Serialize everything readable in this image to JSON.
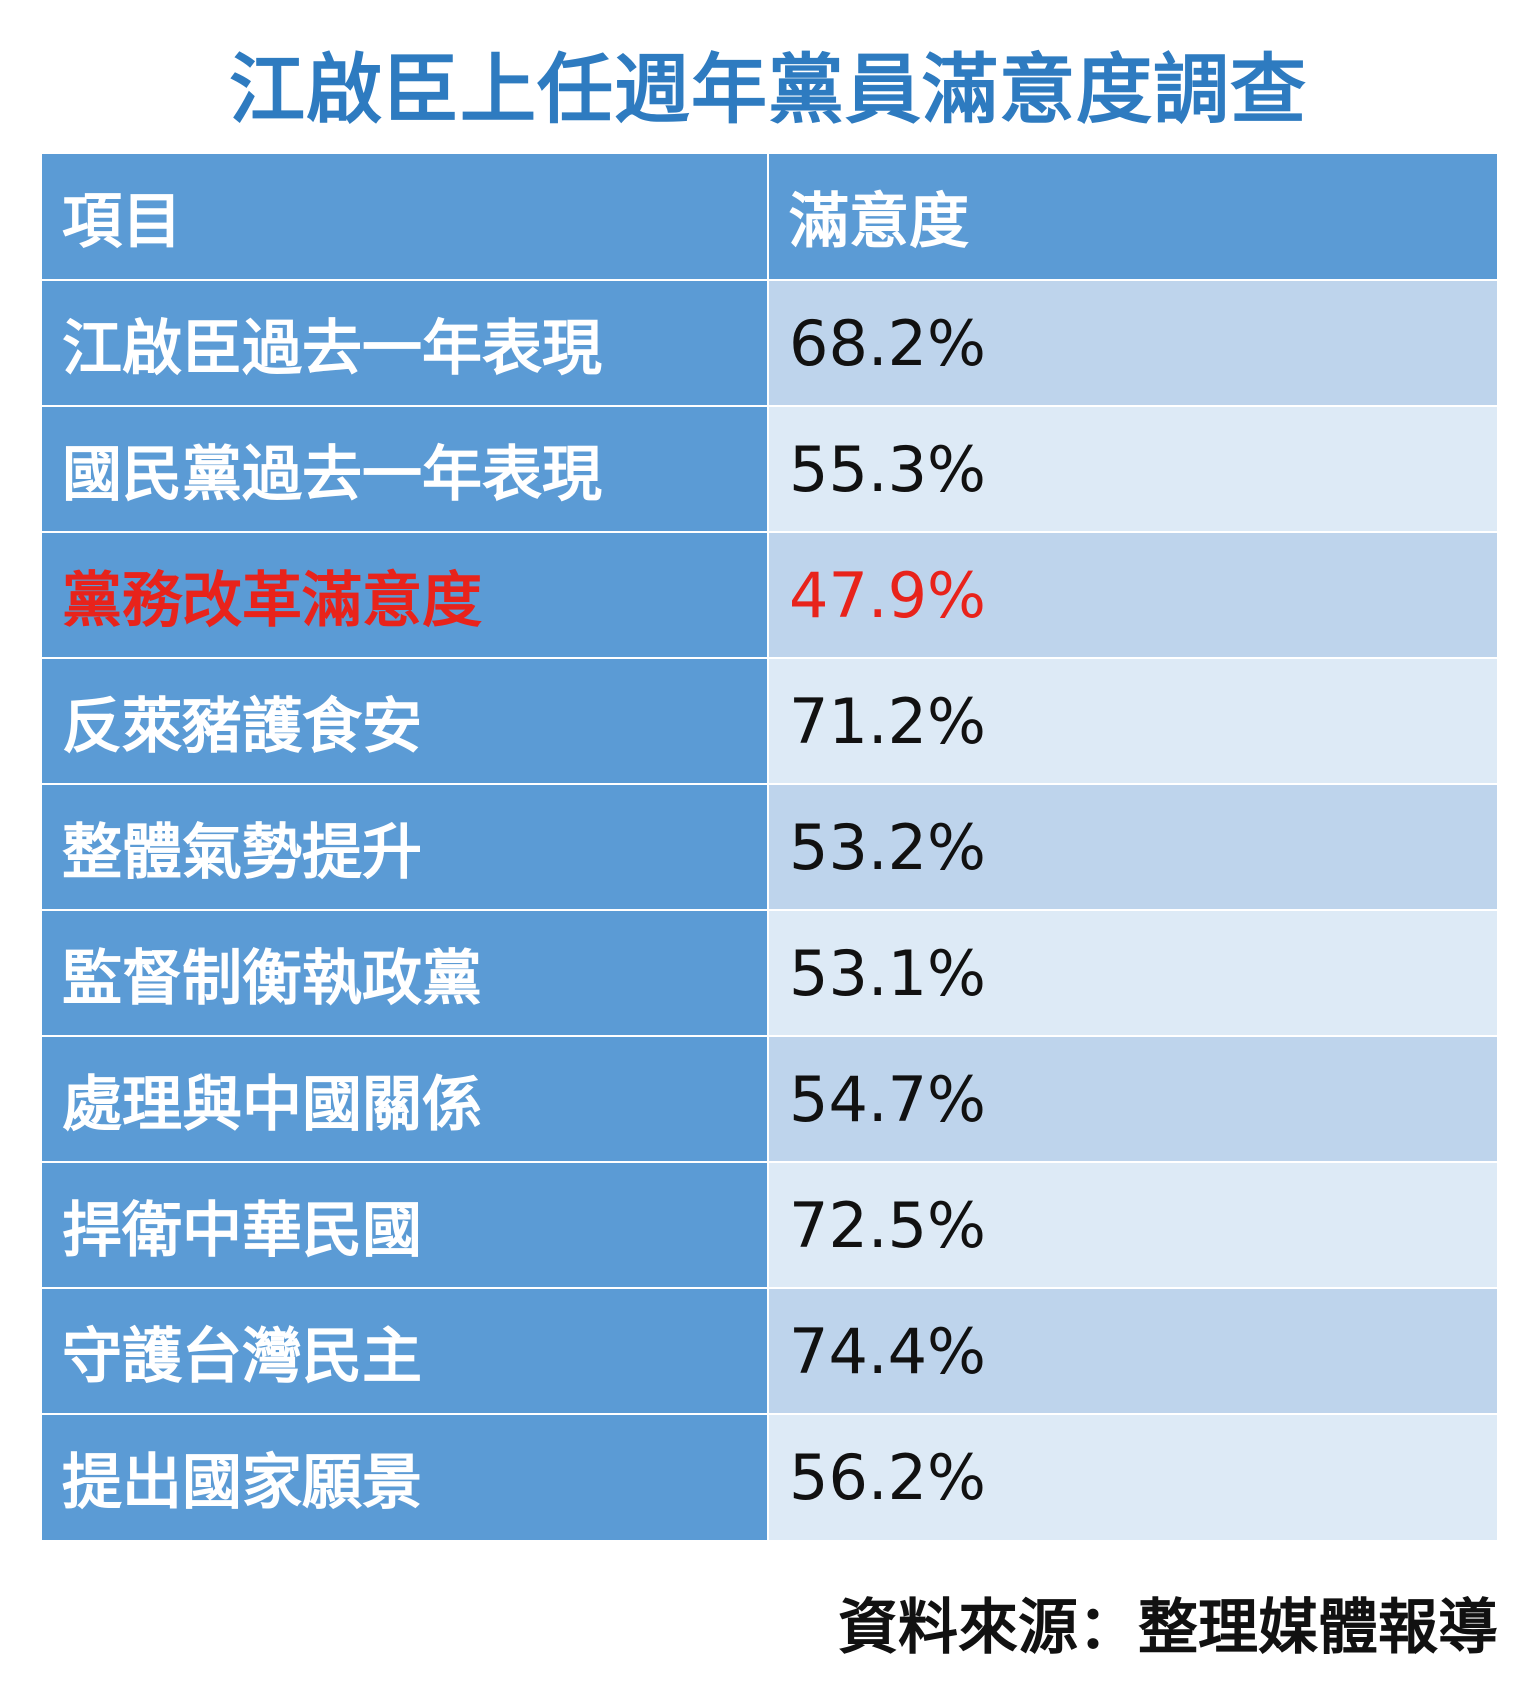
{
  "title": "江啟臣上任週年黨員滿意度調查",
  "table": {
    "header": {
      "item": "項目",
      "value": "滿意度"
    },
    "highlight_color": "#e8231b",
    "header_color": "#5b9bd5",
    "band_colors": [
      "#bed4ec",
      "#ddeaf6"
    ]
  },
  "chart_data": {
    "type": "table",
    "title": "江啟臣上任週年黨員滿意度調查",
    "columns": [
      "項目",
      "滿意度"
    ],
    "rows": [
      {
        "item": "江啟臣過去一年表現",
        "value": "68.2%",
        "number": 68.2
      },
      {
        "item": "國民黨過去一年表現",
        "value": "55.3%",
        "number": 55.3
      },
      {
        "item": "黨務改革滿意度",
        "value": "47.9%",
        "number": 47.9,
        "highlight": true
      },
      {
        "item": "反萊豬護食安",
        "value": "71.2%",
        "number": 71.2
      },
      {
        "item": "整體氣勢提升",
        "value": "53.2%",
        "number": 53.2
      },
      {
        "item": "監督制衡執政黨",
        "value": "53.1%",
        "number": 53.1
      },
      {
        "item": "處理與中國關係",
        "value": "54.7%",
        "number": 54.7
      },
      {
        "item": "捍衛中華民國",
        "value": "72.5%",
        "number": 72.5
      },
      {
        "item": "守護台灣民主",
        "value": "74.4%",
        "number": 74.4
      },
      {
        "item": "提出國家願景",
        "value": "56.2%",
        "number": 56.2
      }
    ]
  },
  "source": "資料來源：整理媒體報導"
}
